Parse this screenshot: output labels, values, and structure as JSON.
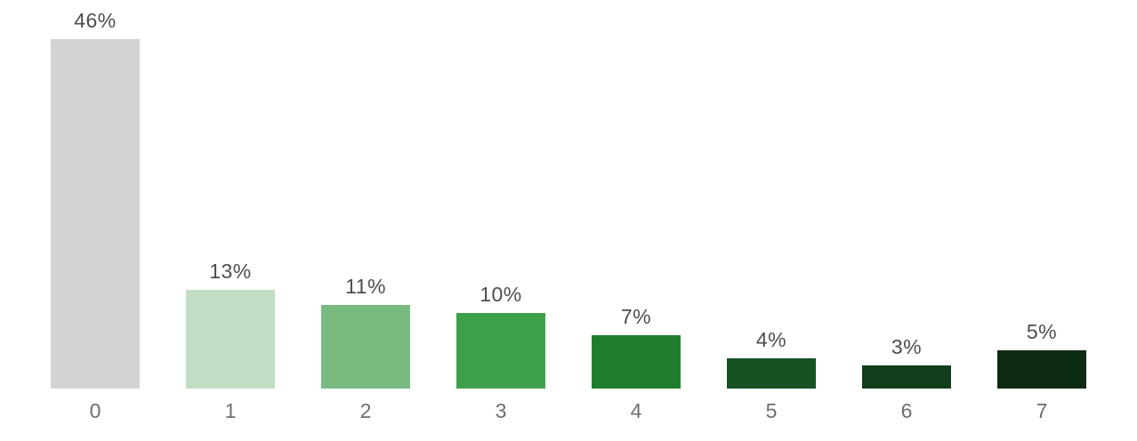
{
  "chart_data": {
    "type": "bar",
    "title": "",
    "xlabel": "",
    "ylabel": "",
    "categories": [
      "0",
      "1",
      "2",
      "3",
      "4",
      "5",
      "6",
      "7"
    ],
    "values": [
      46,
      13,
      11,
      10,
      7,
      4,
      3,
      5
    ],
    "value_labels": [
      "46%",
      "13%",
      "11%",
      "10%",
      "7%",
      "4%",
      "3%",
      "5%"
    ],
    "bar_colors": [
      "#d1d3d4",
      "#c1ddc4",
      "#79ba81",
      "#3fa04b",
      "#1f7e2e",
      "#175222",
      "#123d1a",
      "#0d2a12"
    ],
    "ylim": [
      0,
      50
    ],
    "grid": false,
    "legend": "none",
    "axis_lines": "none",
    "background_color": "#ffffff",
    "value_label_color": "#4d4d4f",
    "axis_label_color": "#6d6e70"
  }
}
